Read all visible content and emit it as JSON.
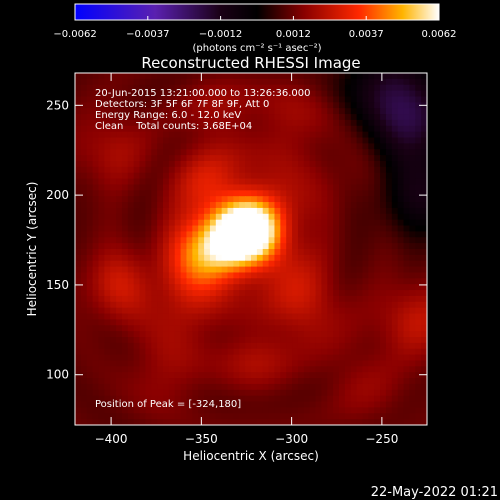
{
  "chart_data": {
    "type": "heatmap",
    "title": "Reconstructed RHESSI Image",
    "xlabel": "Heliocentric X (arcsec)",
    "ylabel": "Heliocentric Y (arcsec)",
    "xlim": [
      -420,
      -225
    ],
    "ylim": [
      72,
      268
    ],
    "x_ticks": [
      -400,
      -350,
      -300,
      -250
    ],
    "y_ticks": [
      100,
      150,
      200,
      250
    ],
    "colorbar": {
      "label": "(photons cm⁻² s⁻¹ asec⁻²)",
      "range": [
        -0.0062,
        0.0062
      ],
      "ticks": [
        "−0.0062",
        "−0.0037",
        "−0.0012",
        "0.0012",
        "0.0037",
        "0.0062"
      ],
      "colors": [
        "#0000ff",
        "#6a2caa",
        "#200018",
        "#000000",
        "#800000",
        "#ff2000",
        "#ffb000",
        "#ffffff"
      ]
    },
    "peak": [
      -324,
      180
    ],
    "sources": [
      {
        "x": -324,
        "y": 180,
        "value": 0.0062
      },
      {
        "x": -348,
        "y": 166,
        "value": 0.0035
      },
      {
        "x": -338,
        "y": 173,
        "value": 0.003
      },
      {
        "x": -310,
        "y": 195,
        "value": 0.0022
      },
      {
        "x": -305,
        "y": 160,
        "value": 0.002
      },
      {
        "x": -345,
        "y": 205,
        "value": 0.0024
      },
      {
        "x": -395,
        "y": 150,
        "value": 0.0021
      },
      {
        "x": -360,
        "y": 135,
        "value": 0.0017
      },
      {
        "x": -290,
        "y": 135,
        "value": 0.0018
      },
      {
        "x": -232,
        "y": 130,
        "value": 0.002
      },
      {
        "x": -400,
        "y": 225,
        "value": 0.0016
      },
      {
        "x": -370,
        "y": 100,
        "value": 0.0014
      },
      {
        "x": -320,
        "y": 110,
        "value": 0.0016
      },
      {
        "x": -260,
        "y": 95,
        "value": 0.0013
      },
      {
        "x": -270,
        "y": 210,
        "value": 0.001
      },
      {
        "x": -300,
        "y": 240,
        "value": 0.0015
      },
      {
        "x": -340,
        "y": 245,
        "value": 0.0014
      }
    ],
    "background": 0.0011,
    "cool_spots": [
      {
        "x": -232,
        "y": 240,
        "value": -0.0014
      },
      {
        "x": -248,
        "y": 262,
        "value": -0.001
      },
      {
        "x": -228,
        "y": 200,
        "value": -0.0008
      }
    ]
  },
  "info_lines": [
    "20-Jun-2015 13:21:00.000 to 13:26:36.000",
    "Detectors: 3F 5F 6F 7F 8F 9F, Att 0",
    "Energy Range: 6.0 - 12.0 keV",
    "Clean    Total counts: 3.68E+04"
  ],
  "peak_label": "Position of Peak = [-324,180]",
  "footer_date": "22-May-2022 01:21"
}
